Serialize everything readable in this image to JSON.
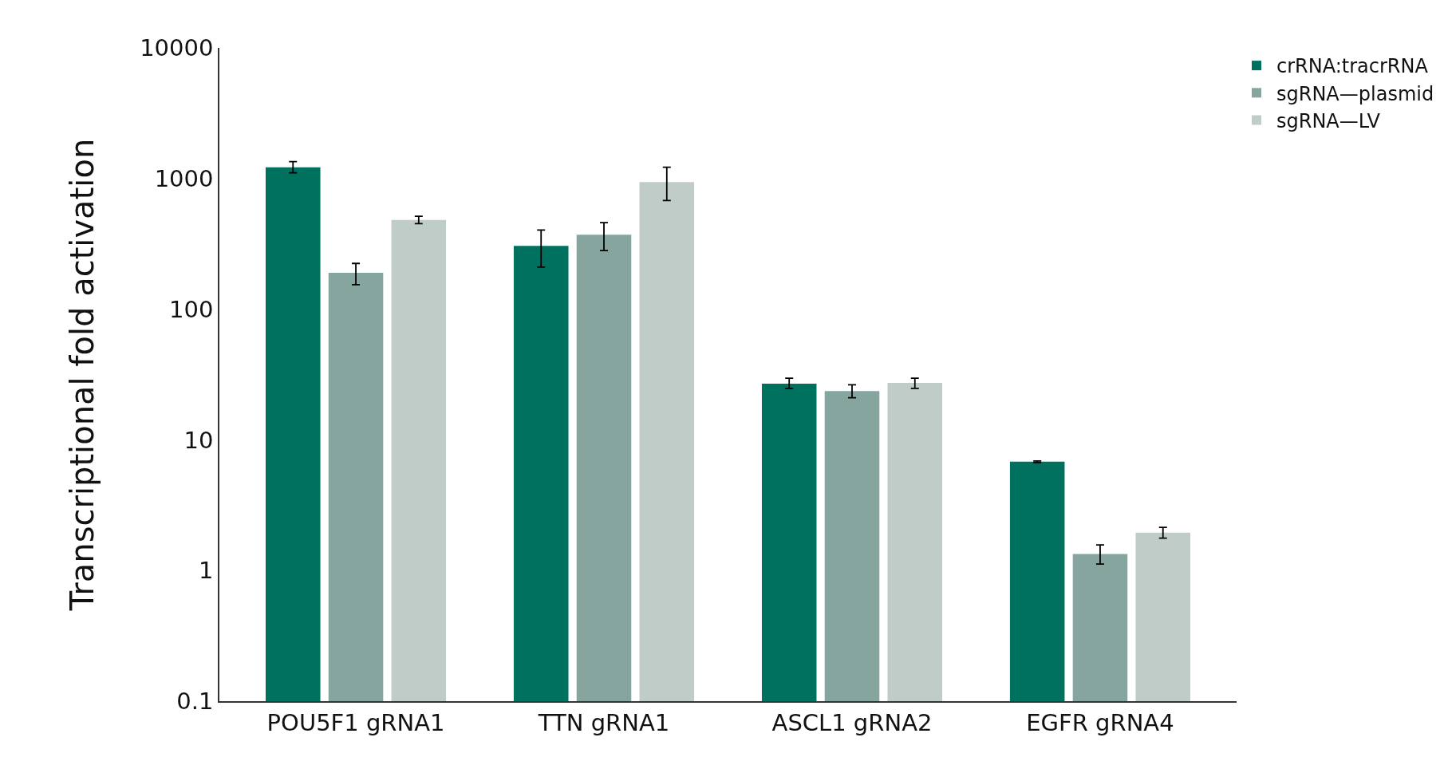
{
  "chart_data": {
    "type": "bar",
    "ylabel": "Transcriptional fold activation",
    "categories": [
      "POU5F1 gRNA1",
      "TTN gRNA1",
      "ASCL1 gRNA2",
      "EGFR gRNA4"
    ],
    "series": [
      {
        "name": "crRNA:tracrRNA",
        "color": "#00715f",
        "values": [
          1220,
          305,
          26.9,
          6.8
        ],
        "errors": [
          [
            1107,
            1345
          ],
          [
            210,
            403
          ],
          [
            24.8,
            29.6
          ],
          [
            6.7,
            6.9
          ]
        ]
      },
      {
        "name": "sgRNA—plasmid",
        "color": "#86a59f",
        "values": [
          190,
          371,
          23.6,
          1.34
        ],
        "errors": [
          [
            154,
            224
          ],
          [
            281,
            459
          ],
          [
            21.0,
            26.4
          ],
          [
            1.12,
            1.57
          ]
        ]
      },
      {
        "name": "sgRNA—LV",
        "color": "#c0ccc8",
        "values": [
          482,
          940,
          27.3,
          1.95
        ],
        "errors": [
          [
            451,
            514
          ],
          [
            678,
            1220
          ],
          [
            24.8,
            29.6
          ],
          [
            1.77,
            2.14
          ]
        ]
      }
    ],
    "log": true,
    "ylim": [
      0.1,
      10000
    ],
    "yticks": [
      0.1,
      1,
      10,
      100,
      1000,
      10000
    ],
    "grid": false,
    "legend": "top right"
  }
}
